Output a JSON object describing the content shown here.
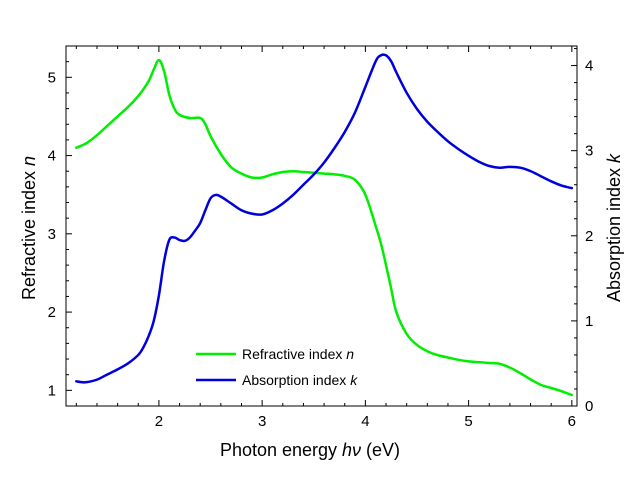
{
  "chart_data": {
    "type": "line",
    "xlabel": {
      "main": "Photon energy ",
      "italic": "hν",
      "tail": " (eV)"
    },
    "ylabel_left": {
      "main": "Refractive index ",
      "italic": "n"
    },
    "ylabel_right": {
      "main": "Absorption index  ",
      "italic": "k"
    },
    "xlim": [
      1.1,
      6.05
    ],
    "ylim_left": [
      0.8,
      5.4
    ],
    "ylim_right": [
      0.0,
      4.23
    ],
    "x_ticks": [
      "2",
      "3",
      "4",
      "5",
      "6"
    ],
    "y_left_ticks": [
      "1",
      "2",
      "3",
      "4",
      "5"
    ],
    "y_right_ticks": [
      "0",
      "1",
      "2",
      "3",
      "4"
    ],
    "series": [
      {
        "name": "Refractive index n",
        "legend_main": "Refractive index ",
        "legend_italic": "n",
        "color": "#00ee00",
        "axis": "left",
        "x": [
          1.2,
          1.3,
          1.4,
          1.5,
          1.6,
          1.7,
          1.8,
          1.9,
          1.95,
          2.0,
          2.05,
          2.1,
          2.15,
          2.2,
          2.3,
          2.4,
          2.45,
          2.5,
          2.6,
          2.7,
          2.8,
          2.9,
          3.0,
          3.1,
          3.2,
          3.3,
          3.4,
          3.5,
          3.6,
          3.7,
          3.8,
          3.9,
          4.0,
          4.1,
          4.15,
          4.2,
          4.25,
          4.3,
          4.4,
          4.5,
          4.6,
          4.7,
          4.8,
          4.9,
          5.0,
          5.1,
          5.2,
          5.3,
          5.4,
          5.5,
          5.6,
          5.7,
          5.8,
          5.9,
          6.0
        ],
        "y": [
          4.1,
          4.16,
          4.26,
          4.38,
          4.5,
          4.62,
          4.76,
          4.95,
          5.1,
          5.22,
          5.08,
          4.78,
          4.6,
          4.52,
          4.48,
          4.48,
          4.4,
          4.25,
          4.02,
          3.85,
          3.77,
          3.72,
          3.72,
          3.76,
          3.79,
          3.8,
          3.79,
          3.78,
          3.77,
          3.76,
          3.74,
          3.69,
          3.5,
          3.1,
          2.88,
          2.6,
          2.3,
          2.0,
          1.72,
          1.58,
          1.5,
          1.45,
          1.42,
          1.39,
          1.37,
          1.36,
          1.35,
          1.34,
          1.29,
          1.22,
          1.14,
          1.07,
          1.03,
          0.99,
          0.94
        ]
      },
      {
        "name": "Absorption index k",
        "legend_main": "Absorption index ",
        "legend_italic": "k",
        "color": "#0000dd",
        "axis": "right",
        "x": [
          1.2,
          1.25,
          1.3,
          1.4,
          1.5,
          1.6,
          1.7,
          1.8,
          1.85,
          1.9,
          1.95,
          2.0,
          2.05,
          2.1,
          2.15,
          2.2,
          2.25,
          2.3,
          2.35,
          2.4,
          2.45,
          2.5,
          2.55,
          2.6,
          2.7,
          2.8,
          2.9,
          3.0,
          3.1,
          3.2,
          3.3,
          3.4,
          3.5,
          3.6,
          3.7,
          3.8,
          3.9,
          4.0,
          4.1,
          4.15,
          4.2,
          4.25,
          4.3,
          4.4,
          4.5,
          4.6,
          4.7,
          4.8,
          4.9,
          5.0,
          5.1,
          5.2,
          5.3,
          5.4,
          5.5,
          5.6,
          5.7,
          5.8,
          5.9,
          6.0
        ],
        "y": [
          0.29,
          0.28,
          0.28,
          0.31,
          0.37,
          0.43,
          0.5,
          0.6,
          0.69,
          0.82,
          1.0,
          1.3,
          1.7,
          1.95,
          1.98,
          1.95,
          1.94,
          1.98,
          2.06,
          2.15,
          2.3,
          2.44,
          2.48,
          2.46,
          2.38,
          2.3,
          2.26,
          2.25,
          2.3,
          2.38,
          2.48,
          2.6,
          2.72,
          2.86,
          3.03,
          3.22,
          3.45,
          3.75,
          4.05,
          4.12,
          4.12,
          4.05,
          3.92,
          3.68,
          3.49,
          3.34,
          3.22,
          3.11,
          3.02,
          2.94,
          2.87,
          2.82,
          2.8,
          2.81,
          2.8,
          2.76,
          2.7,
          2.64,
          2.59,
          2.56
        ]
      }
    ]
  }
}
